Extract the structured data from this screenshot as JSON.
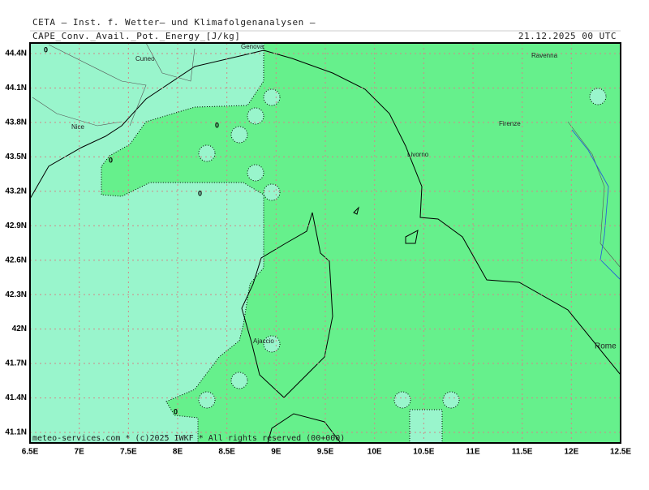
{
  "header": {
    "institute": "CETA — Inst. f. Wetter— und Klimafolgenanalysen —",
    "parameter": "CAPE_Conv._Avail._Pot._Energy_[J/kg]",
    "valid_time": "21.12.2025 00 UTC"
  },
  "map": {
    "lat_labels": [
      "44.4N",
      "44.1N",
      "43.8N",
      "43.5N",
      "43.2N",
      "42.9N",
      "42.6N",
      "42.3N",
      "42N",
      "41.7N",
      "41.4N",
      "41.1N"
    ],
    "lon_labels": [
      "6.5E",
      "7E",
      "7.5E",
      "8E",
      "8.5E",
      "9E",
      "9.5E",
      "10E",
      "10.5E",
      "11E",
      "11.5E",
      "12E",
      "12.5E"
    ],
    "places": [
      "Cuneo",
      "Genova",
      "Ravenna",
      "Nice",
      "Firenze",
      "Livorno",
      "Ajaccio",
      "Rome"
    ],
    "contour_labels": [
      "0",
      "0",
      "0",
      "0",
      "0"
    ]
  },
  "footer": "meteo-services.com * (c)2025 IWKF * All rights reserved (00+000)"
}
